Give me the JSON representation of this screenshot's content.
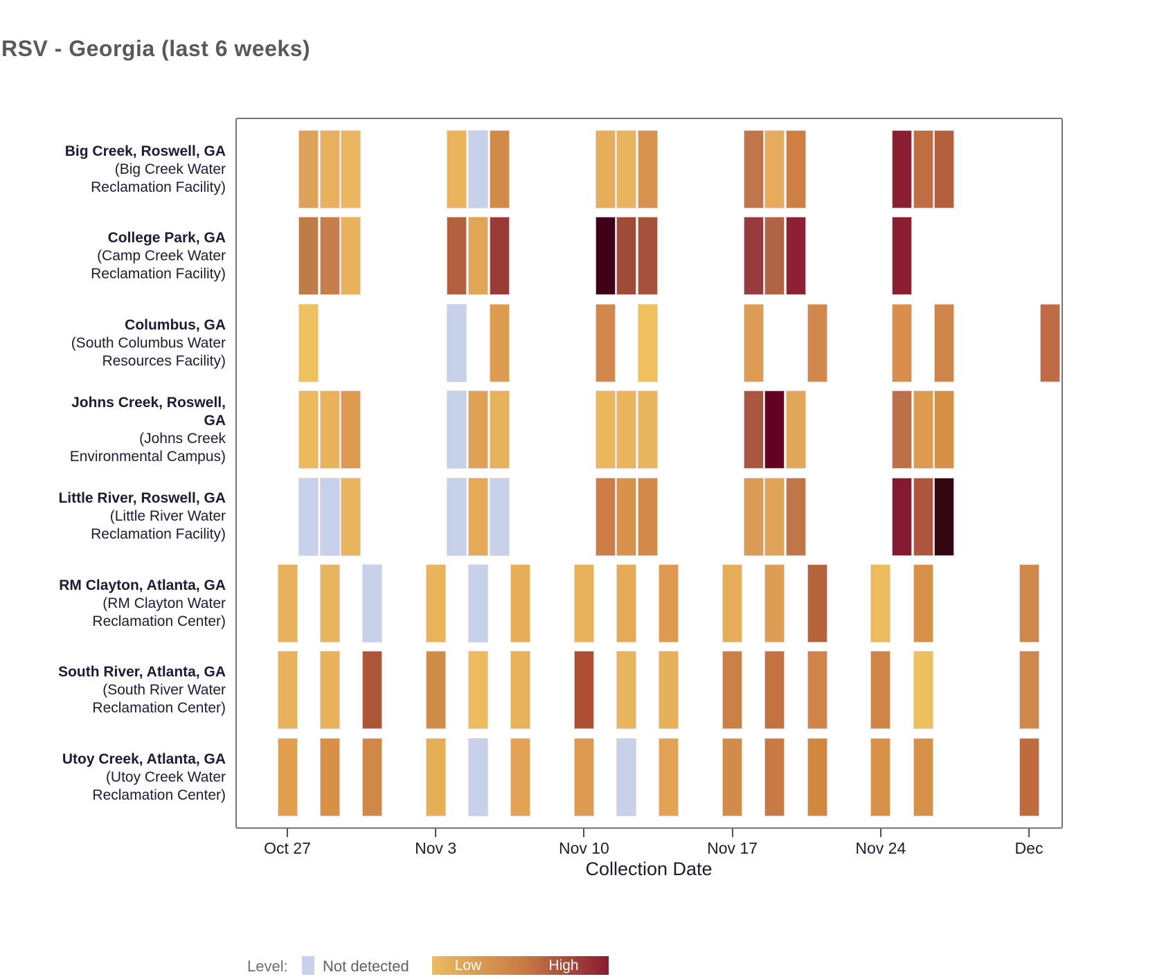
{
  "chart_data": {
    "type": "heatmap",
    "title": "RSV - Georgia (last 6 weeks)",
    "xlabel": "Collection Date",
    "grid": false,
    "legend_position": "bottom",
    "x_axis": {
      "ticks": [
        {
          "label": "Oct 27",
          "day": 0
        },
        {
          "label": "Nov 3",
          "day": 7
        },
        {
          "label": "Nov 10",
          "day": 14
        },
        {
          "label": "Nov 17",
          "day": 21
        },
        {
          "label": "Nov 24",
          "day": 28
        },
        {
          "label": "Dec",
          "day": 35
        }
      ]
    },
    "legend": {
      "label": "Level:",
      "not_detected_label": "Not detected",
      "not_detected_color": "#c8d1ea",
      "low_label": "Low",
      "high_label": "High",
      "gradient": [
        "#ebbc60",
        "#c87a45",
        "#8a1a33"
      ]
    },
    "tile_format": "[day_offset_from_Oct27, date_label, hex_color, relative_level_0to1_or_null_if_not_detected]",
    "rows": [
      {
        "site_lines": [
          "Big Creek, Roswell, GA"
        ],
        "facility_lines": [
          "(Big Creek Water",
          "Reclamation Facility)"
        ],
        "tiles": [
          [
            1,
            "Oct 28",
            "#dda158",
            0.2
          ],
          [
            2,
            "Oct 29",
            "#e8b15d",
            0.1
          ],
          [
            3,
            "Oct 30",
            "#eab65f",
            0.1
          ],
          [
            8,
            "Nov 4",
            "#e9b45c",
            0.1
          ],
          [
            9,
            "Nov 5",
            "#c8d1ea",
            null
          ],
          [
            10,
            "Nov 6",
            "#d28a4a",
            0.3
          ],
          [
            15,
            "Nov 11",
            "#e7ae5a",
            0.15
          ],
          [
            16,
            "Nov 12",
            "#e9b45e",
            0.1
          ],
          [
            17,
            "Nov 13",
            "#d9924e",
            0.25
          ],
          [
            22,
            "Nov 18",
            "#c0764a",
            0.45
          ],
          [
            23,
            "Nov 19",
            "#e6ab5c",
            0.15
          ],
          [
            24,
            "Nov 20",
            "#cd7f44",
            0.4
          ],
          [
            29,
            "Nov 25",
            "#8c1e33",
            0.9
          ],
          [
            30,
            "Nov 26",
            "#bf6d42",
            0.5
          ],
          [
            31,
            "Nov 27",
            "#b55f3f",
            0.6
          ]
        ]
      },
      {
        "site_lines": [
          "College Park, GA"
        ],
        "facility_lines": [
          "(Camp Creek Water",
          "Reclamation Facility)"
        ],
        "tiles": [
          [
            1,
            "Oct 28",
            "#c07c48",
            0.45
          ],
          [
            2,
            "Oct 29",
            "#c67f4a",
            0.45
          ],
          [
            3,
            "Oct 30",
            "#e8b15c",
            0.1
          ],
          [
            8,
            "Nov 4",
            "#b3603f",
            0.6
          ],
          [
            9,
            "Nov 5",
            "#e2a556",
            0.2
          ],
          [
            10,
            "Nov 6",
            "#9c3a38",
            0.75
          ],
          [
            15,
            "Nov 11",
            "#400018",
            1.0
          ],
          [
            16,
            "Nov 12",
            "#a04b38",
            0.7
          ],
          [
            17,
            "Nov 13",
            "#a5523c",
            0.68
          ],
          [
            22,
            "Nov 18",
            "#963b40",
            0.78
          ],
          [
            23,
            "Nov 19",
            "#b06444",
            0.6
          ],
          [
            24,
            "Nov 20",
            "#8c2136",
            0.88
          ],
          [
            29,
            "Nov 25",
            "#8c1d33",
            0.9
          ]
        ]
      },
      {
        "site_lines": [
          "Columbus, GA"
        ],
        "facility_lines": [
          "(South Columbus Water",
          "Resources Facility)"
        ],
        "tiles": [
          [
            1,
            "Oct 28",
            "#eec161",
            0.05
          ],
          [
            8,
            "Nov 4",
            "#c8d1ea",
            null
          ],
          [
            10,
            "Nov 6",
            "#dd9b50",
            0.25
          ],
          [
            15,
            "Nov 11",
            "#d2884a",
            0.3
          ],
          [
            17,
            "Nov 13",
            "#eec05f",
            0.05
          ],
          [
            22,
            "Nov 18",
            "#dd9b55",
            0.25
          ],
          [
            25,
            "Nov 21",
            "#d2884a",
            0.3
          ],
          [
            29,
            "Nov 25",
            "#d98e4d",
            0.28
          ],
          [
            31,
            "Nov 27",
            "#cf854a",
            0.32
          ],
          [
            36,
            "Dec 2",
            "#c16b44",
            0.5
          ]
        ]
      },
      {
        "site_lines": [
          "Johns Creek, Roswell,",
          "GA"
        ],
        "facility_lines": [
          "(Johns Creek",
          "Environmental Campus)"
        ],
        "tiles": [
          [
            1,
            "Oct 28",
            "#ecb95c",
            0.08
          ],
          [
            2,
            "Oct 29",
            "#eab35a",
            0.1
          ],
          [
            3,
            "Oct 30",
            "#dd9a50",
            0.25
          ],
          [
            8,
            "Nov 4",
            "#c8d1ea",
            null
          ],
          [
            9,
            "Nov 5",
            "#dfa254",
            0.2
          ],
          [
            10,
            "Nov 6",
            "#e8b15c",
            0.1
          ],
          [
            15,
            "Nov 11",
            "#ecb75c",
            0.08
          ],
          [
            16,
            "Nov 12",
            "#eab55c",
            0.1
          ],
          [
            17,
            "Nov 13",
            "#e9b45e",
            0.1
          ],
          [
            22,
            "Nov 18",
            "#a85840",
            0.65
          ],
          [
            23,
            "Nov 19",
            "#650122",
            1.0
          ],
          [
            24,
            "Nov 20",
            "#e2a658",
            0.18
          ],
          [
            29,
            "Nov 25",
            "#bd7048",
            0.5
          ],
          [
            30,
            "Nov 26",
            "#dd9a50",
            0.25
          ],
          [
            31,
            "Nov 27",
            "#d79147",
            0.28
          ]
        ]
      },
      {
        "site_lines": [
          "Little River, Roswell, GA"
        ],
        "facility_lines": [
          "(Little River Water",
          "Reclamation Facility)"
        ],
        "tiles": [
          [
            1,
            "Oct 28",
            "#c8d1ea",
            null
          ],
          [
            2,
            "Oct 29",
            "#c8d1ea",
            null
          ],
          [
            3,
            "Oct 30",
            "#e9b45c",
            0.1
          ],
          [
            8,
            "Nov 4",
            "#c8d1ea",
            null
          ],
          [
            9,
            "Nov 5",
            "#e5aa58",
            0.15
          ],
          [
            10,
            "Nov 6",
            "#c8d1ea",
            null
          ],
          [
            15,
            "Nov 11",
            "#cd7d45",
            0.4
          ],
          [
            16,
            "Nov 12",
            "#d9924c",
            0.28
          ],
          [
            17,
            "Nov 13",
            "#d28a48",
            0.32
          ],
          [
            22,
            "Nov 18",
            "#da9b55",
            0.25
          ],
          [
            23,
            "Nov 19",
            "#dfa458",
            0.2
          ],
          [
            24,
            "Nov 20",
            "#c1764a",
            0.45
          ],
          [
            29,
            "Nov 25",
            "#831a2f",
            0.92
          ],
          [
            30,
            "Nov 26",
            "#b05540",
            0.65
          ],
          [
            31,
            "Nov 27",
            "#330612",
            1.0
          ]
        ]
      },
      {
        "site_lines": [
          "RM Clayton, Atlanta, GA"
        ],
        "facility_lines": [
          "(RM Clayton Water",
          "Reclamation Center)"
        ],
        "tiles": [
          [
            0,
            "Oct 27",
            "#e8b15c",
            0.1
          ],
          [
            2,
            "Oct 29",
            "#e9b45e",
            0.1
          ],
          [
            4,
            "Oct 31",
            "#c8d1ea",
            null
          ],
          [
            7,
            "Nov 3",
            "#e9b45c",
            0.1
          ],
          [
            9,
            "Nov 5",
            "#c8d1ea",
            null
          ],
          [
            11,
            "Nov 7",
            "#e7ae5a",
            0.12
          ],
          [
            14,
            "Nov 10",
            "#e8b15c",
            0.1
          ],
          [
            16,
            "Nov 12",
            "#e5aa58",
            0.15
          ],
          [
            18,
            "Nov 14",
            "#dd9a50",
            0.25
          ],
          [
            21,
            "Nov 17",
            "#e7ae5a",
            0.12
          ],
          [
            23,
            "Nov 19",
            "#dd9d52",
            0.22
          ],
          [
            25,
            "Nov 21",
            "#b5623d",
            0.6
          ],
          [
            28,
            "Nov 24",
            "#ecbb60",
            0.05
          ],
          [
            30,
            "Nov 26",
            "#d79148",
            0.3
          ],
          [
            35,
            "Dec 1",
            "#d0884a",
            0.32
          ]
        ]
      },
      {
        "site_lines": [
          "South River, Atlanta, GA"
        ],
        "facility_lines": [
          "(South River Water",
          "Reclamation Center)"
        ],
        "tiles": [
          [
            0,
            "Oct 27",
            "#e9b25c",
            0.1
          ],
          [
            2,
            "Oct 29",
            "#e8b15c",
            0.1
          ],
          [
            4,
            "Oct 31",
            "#ae5638",
            0.65
          ],
          [
            7,
            "Nov 3",
            "#d28c4a",
            0.3
          ],
          [
            9,
            "Nov 5",
            "#ecbb5e",
            0.05
          ],
          [
            11,
            "Nov 7",
            "#e8b15c",
            0.1
          ],
          [
            14,
            "Nov 10",
            "#ad4f33",
            0.68
          ],
          [
            16,
            "Nov 12",
            "#e9b45e",
            0.1
          ],
          [
            18,
            "Nov 14",
            "#e7b05a",
            0.12
          ],
          [
            21,
            "Nov 17",
            "#cc7f46",
            0.4
          ],
          [
            23,
            "Nov 19",
            "#c57243",
            0.48
          ],
          [
            25,
            "Nov 21",
            "#d08448",
            0.35
          ],
          [
            28,
            "Nov 24",
            "#d08448",
            0.35
          ],
          [
            30,
            "Nov 26",
            "#ecc05e",
            0.05
          ],
          [
            35,
            "Dec 1",
            "#d0884a",
            0.32
          ]
        ]
      },
      {
        "site_lines": [
          "Utoy Creek, Atlanta, GA"
        ],
        "facility_lines": [
          "(Utoy Creek Water",
          "Reclamation Center)"
        ],
        "tiles": [
          [
            0,
            "Oct 27",
            "#e0a050",
            0.2
          ],
          [
            2,
            "Oct 29",
            "#d79046",
            0.3
          ],
          [
            4,
            "Oct 31",
            "#d08848",
            0.33
          ],
          [
            7,
            "Nov 3",
            "#e7ae58",
            0.12
          ],
          [
            9,
            "Nov 5",
            "#c8d1ea",
            null
          ],
          [
            11,
            "Nov 7",
            "#e2a454",
            0.18
          ],
          [
            14,
            "Nov 10",
            "#dd9a50",
            0.25
          ],
          [
            16,
            "Nov 12",
            "#c8d1ea",
            null
          ],
          [
            18,
            "Nov 14",
            "#e2a454",
            0.18
          ],
          [
            21,
            "Nov 17",
            "#d28c4a",
            0.3
          ],
          [
            23,
            "Nov 19",
            "#c87a42",
            0.42
          ],
          [
            25,
            "Nov 21",
            "#d0883f",
            0.33
          ],
          [
            28,
            "Nov 24",
            "#d79148",
            0.3
          ],
          [
            30,
            "Nov 26",
            "#d79148",
            0.3
          ],
          [
            35,
            "Dec 1",
            "#c06b3e",
            0.5
          ]
        ]
      }
    ]
  }
}
